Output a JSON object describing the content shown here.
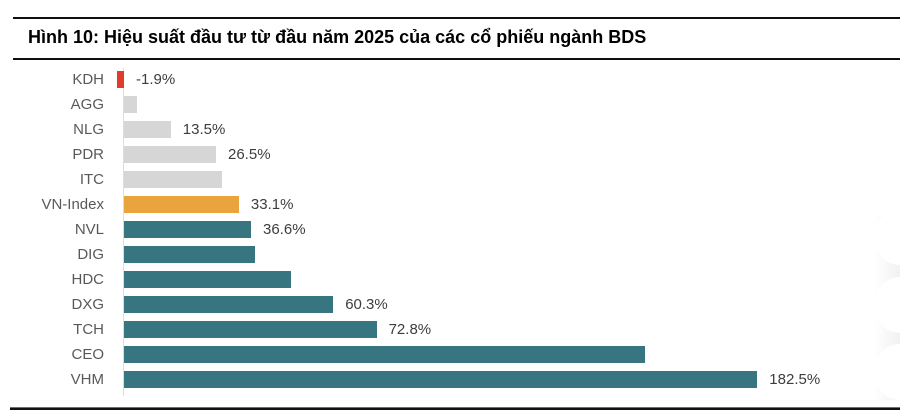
{
  "chart_data": {
    "type": "bar",
    "orientation": "horizontal",
    "title": "Hình 10: Hiệu suất đầu tư từ đầu năm 2025 của các cổ phiếu ngành BDS",
    "xlabel": "",
    "ylabel": "",
    "unit": "%",
    "xlim": [
      -5,
      225
    ],
    "grid": false,
    "legend": "none",
    "categories": [
      "KDH",
      "AGG",
      "NLG",
      "PDR",
      "ITC",
      "VN-Index",
      "NVL",
      "DIG",
      "HDC",
      "DXG",
      "TCH",
      "CEO",
      "VHM"
    ],
    "values": [
      -1.9,
      3.7,
      13.5,
      26.5,
      28.2,
      33.1,
      36.6,
      37.8,
      48.2,
      60.3,
      72.8,
      150.0,
      182.5
    ],
    "data_labels": [
      "-1.9%",
      "",
      "13.5%",
      "26.5%",
      "",
      "33.1%",
      "36.6%",
      "",
      "",
      "60.3%",
      "72.8%",
      "",
      "182.5%"
    ],
    "color_roles": [
      "negative",
      "muted",
      "muted",
      "muted",
      "muted",
      "benchmark",
      "sector",
      "sector",
      "sector",
      "sector",
      "sector",
      "sector",
      "sector"
    ],
    "colors": {
      "negative": "#e23b2e",
      "muted": "#d6d6d6",
      "benchmark": "#e9a43d",
      "sector": "#377680",
      "axis_line": "#dcdcdc",
      "category_label": "#595959",
      "value_label": "#3d3d3d",
      "rule": "#111111"
    }
  }
}
